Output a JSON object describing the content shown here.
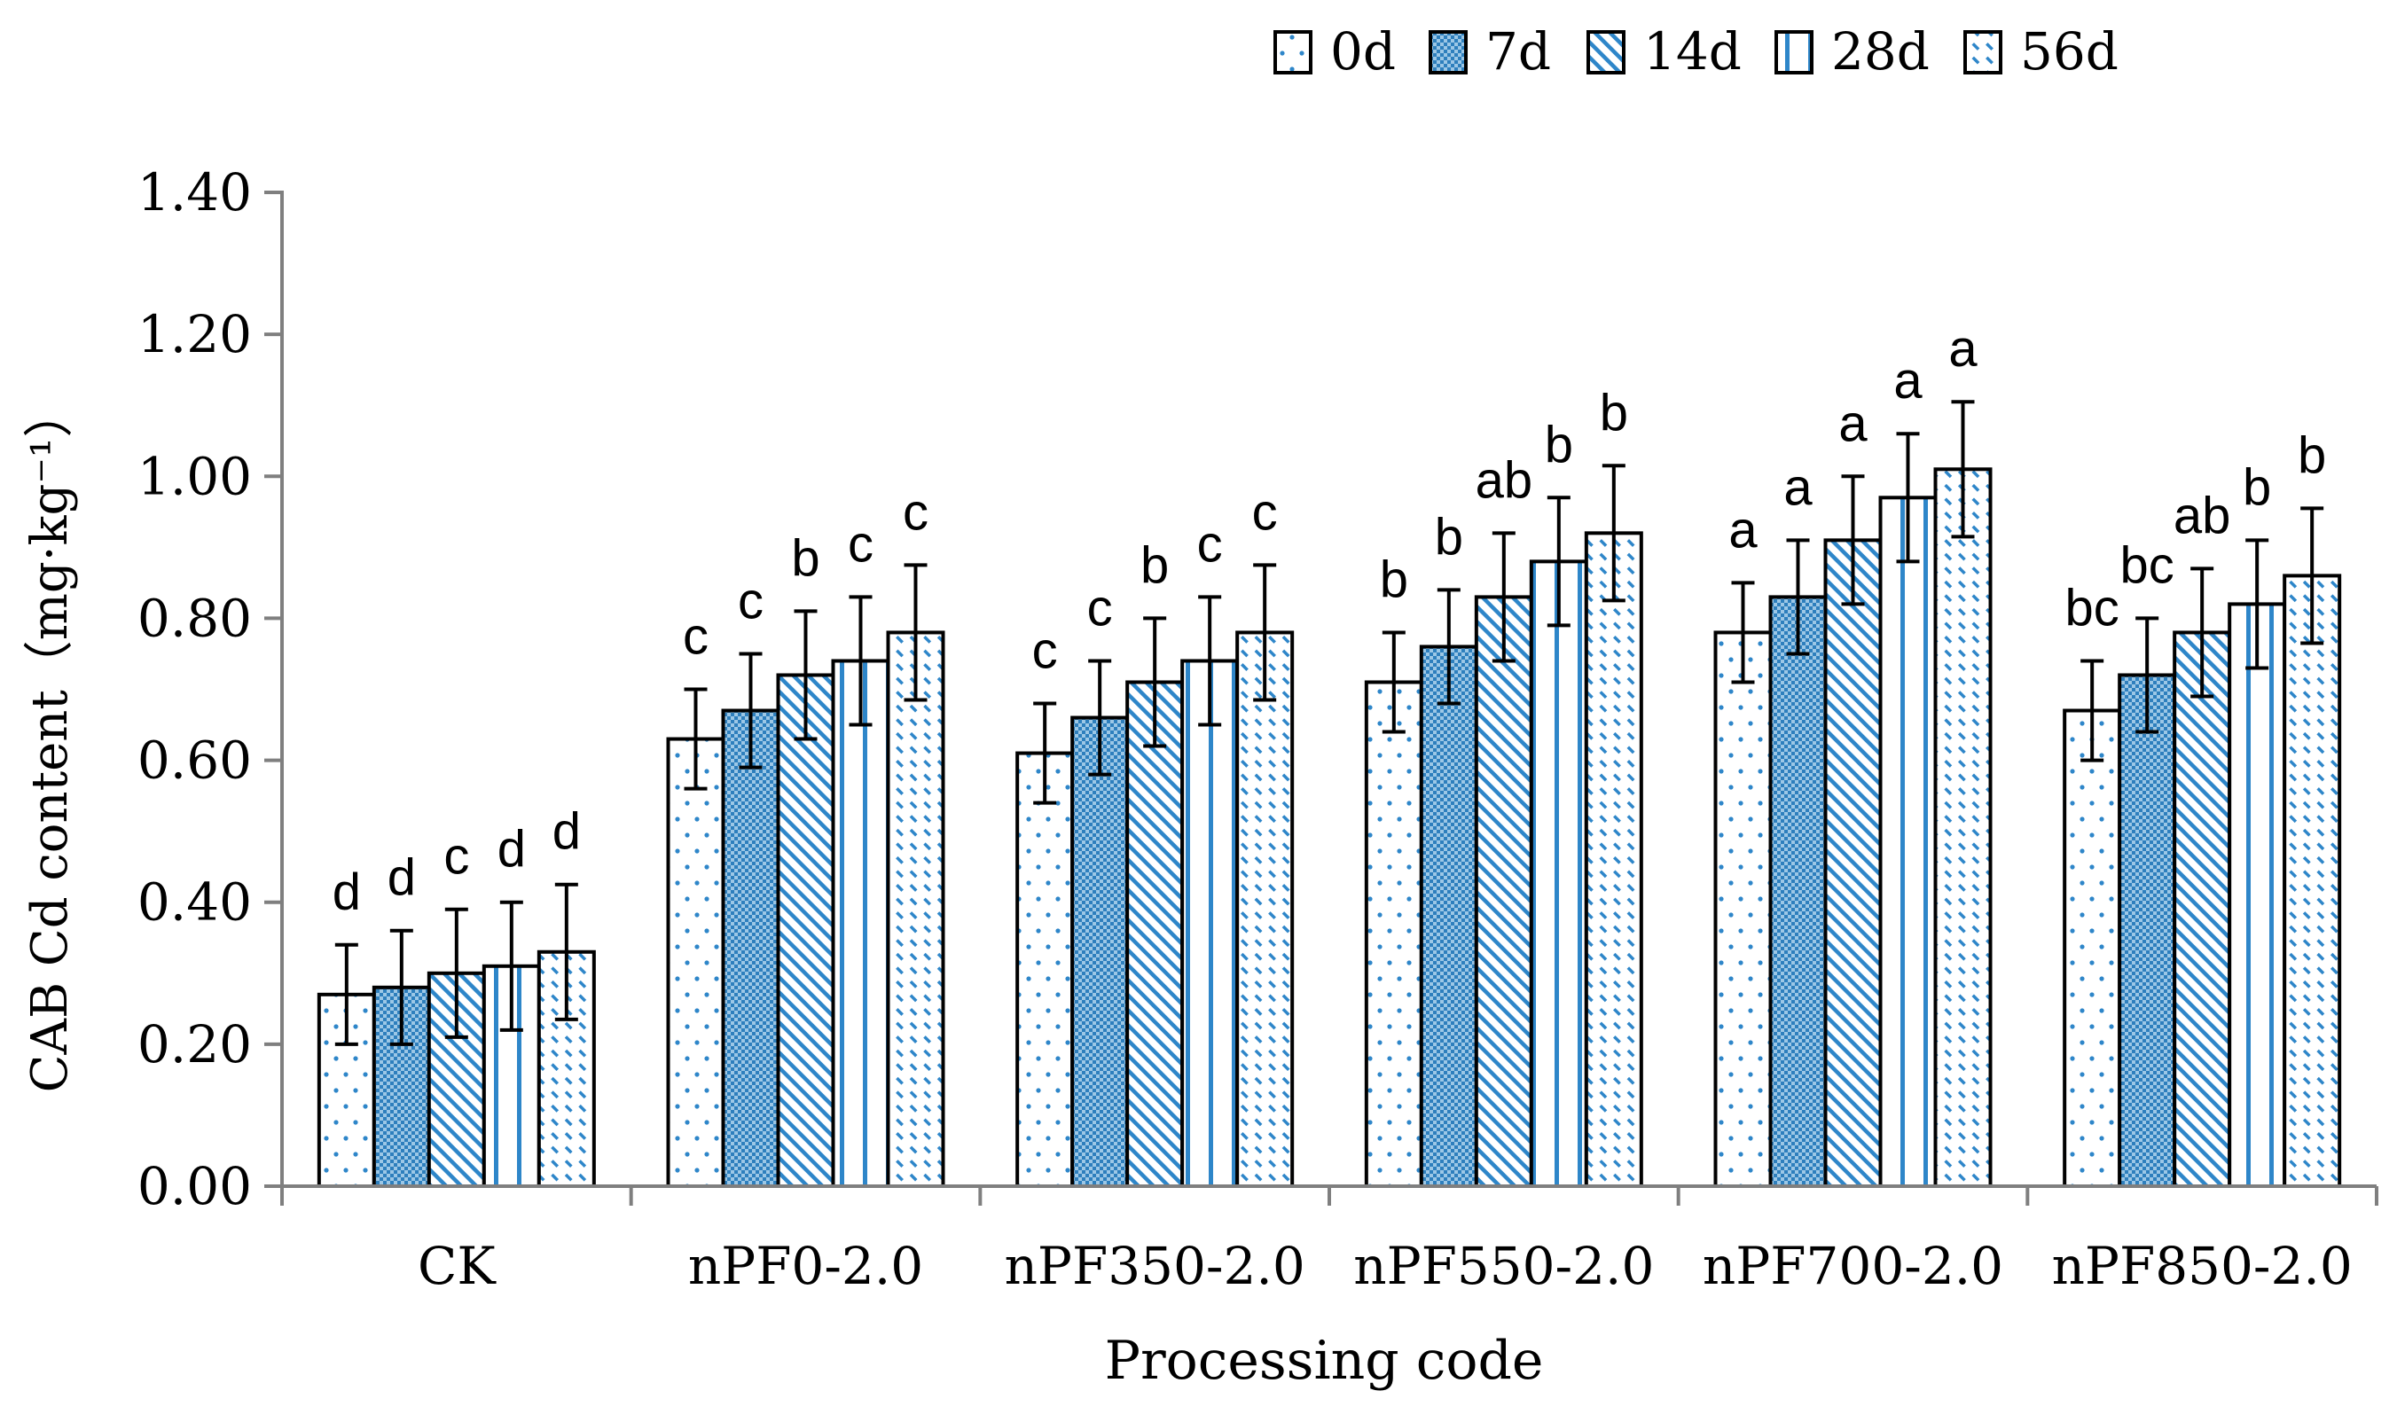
{
  "chart_data": {
    "type": "bar",
    "title": "",
    "xlabel": "Processing code",
    "ylabel": "CAB Cd content（mg·kg⁻¹）",
    "ylim": [
      0,
      1.4
    ],
    "yticks": [
      "0.00",
      "0.20",
      "0.40",
      "0.60",
      "0.80",
      "1.00",
      "1.20",
      "1.40"
    ],
    "categories": [
      "CK",
      "nPF0-2.0",
      "nPF350-2.0",
      "nPF550-2.0",
      "nPF700-2.0",
      "nPF850-2.0"
    ],
    "legend_position": "top-right",
    "series": [
      {
        "name": "0d",
        "pattern": "sparse-dots",
        "values": [
          0.27,
          0.63,
          0.61,
          0.71,
          0.78,
          0.67
        ],
        "errors": [
          0.07,
          0.07,
          0.07,
          0.07,
          0.07,
          0.07
        ],
        "labels": [
          "d",
          "c",
          "c",
          "b",
          "a",
          "bc"
        ]
      },
      {
        "name": "7d",
        "pattern": "dense-checker",
        "values": [
          0.28,
          0.67,
          0.66,
          0.76,
          0.83,
          0.72
        ],
        "errors": [
          0.08,
          0.08,
          0.08,
          0.08,
          0.08,
          0.08
        ],
        "labels": [
          "d",
          "c",
          "c",
          "b",
          "a",
          "bc"
        ]
      },
      {
        "name": "14d",
        "pattern": "diagonal-lines",
        "values": [
          0.3,
          0.72,
          0.71,
          0.83,
          0.91,
          0.78
        ],
        "errors": [
          0.09,
          0.09,
          0.09,
          0.09,
          0.09,
          0.09
        ],
        "labels": [
          "c",
          "b",
          "b",
          "ab",
          "a",
          "ab"
        ]
      },
      {
        "name": "28d",
        "pattern": "vertical-lines",
        "values": [
          0.31,
          0.74,
          0.74,
          0.88,
          0.97,
          0.82
        ],
        "errors": [
          0.09,
          0.09,
          0.09,
          0.09,
          0.09,
          0.09
        ],
        "labels": [
          "d",
          "c",
          "c",
          "b",
          "a",
          "b"
        ]
      },
      {
        "name": "56d",
        "pattern": "diagonal-dashes",
        "values": [
          0.33,
          0.78,
          0.78,
          0.92,
          1.01,
          0.86
        ],
        "errors": [
          0.095,
          0.095,
          0.095,
          0.095,
          0.095,
          0.095
        ],
        "labels": [
          "d",
          "c",
          "c",
          "b",
          "a",
          "b"
        ]
      }
    ]
  }
}
